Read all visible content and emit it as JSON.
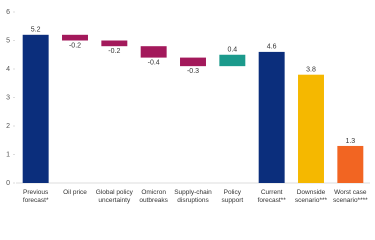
{
  "chart_data": {
    "type": "waterfall",
    "categories": [
      "Previous forecast*",
      "Oil price",
      "Global policy uncertainty",
      "Omicron outbreaks",
      "Supply-chain disruptions",
      "Policy support",
      "Current forecast**",
      "Downside scenario***",
      "Worst case scenario****"
    ],
    "values": [
      5.2,
      -0.2,
      -0.2,
      -0.4,
      -0.3,
      0.4,
      4.6,
      3.8,
      1.3
    ],
    "measure": [
      "absolute",
      "relative",
      "relative",
      "relative",
      "relative",
      "relative",
      "absolute",
      "absolute",
      "absolute"
    ],
    "colors": [
      "#0b2e7c",
      "#a3195b",
      "#a3195b",
      "#a3195b",
      "#a3195b",
      "#1b9a8c",
      "#0b2e7c",
      "#f5b800",
      "#f26522"
    ],
    "ylim": [
      0,
      6
    ],
    "yticks": [
      0,
      1,
      2,
      3,
      4,
      5,
      6
    ]
  }
}
